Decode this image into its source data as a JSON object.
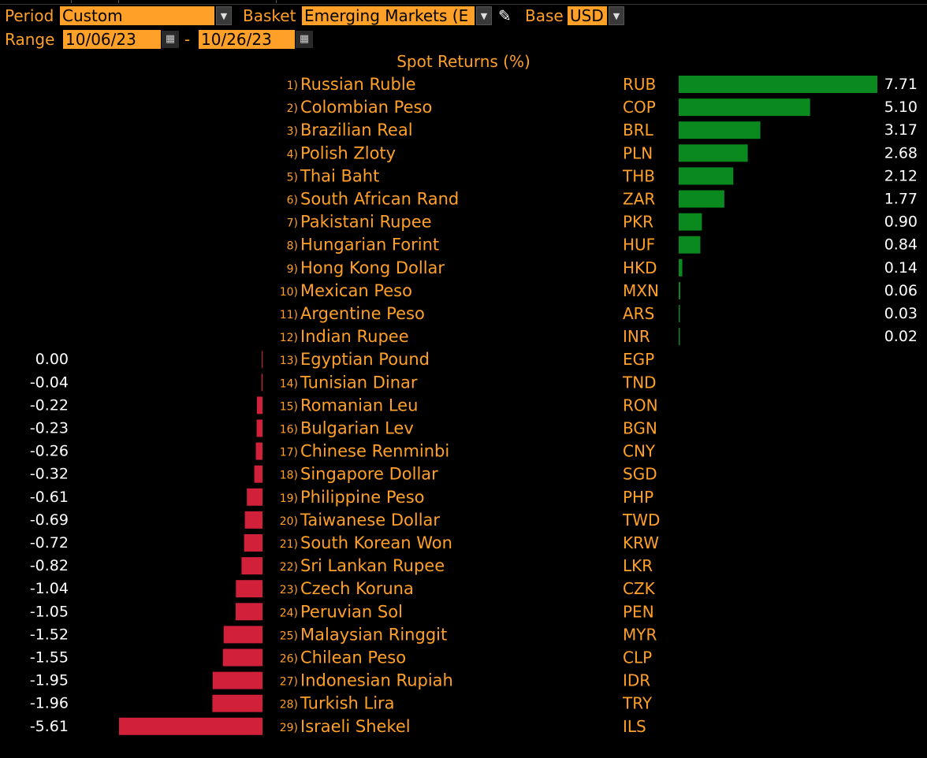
{
  "header": {
    "period_label": "Period",
    "period_value": "Custom",
    "basket_label": "Basket",
    "basket_value": "Emerging Markets (E",
    "base_label": "Base",
    "base_value": "USD",
    "range_label": "Range",
    "range_start": "10/06/23",
    "range_dash": "-",
    "range_end": "10/26/23"
  },
  "icons": {
    "dropdown": "chevron-down-icon",
    "calendar": "calendar-icon",
    "edit": "pencil-icon"
  },
  "colors": {
    "accent": "#ffa028",
    "positive": "#0a8a1e",
    "negative": "#d0203a",
    "background": "#000000"
  },
  "chart_data": {
    "type": "bar",
    "orientation": "horizontal-diverging",
    "title": "Spot Returns (%)",
    "rows": [
      {
        "rank": "1)",
        "name": "Russian Ruble",
        "code": "RUB",
        "value": 7.71
      },
      {
        "rank": "2)",
        "name": "Colombian Peso",
        "code": "COP",
        "value": 5.1
      },
      {
        "rank": "3)",
        "name": "Brazilian Real",
        "code": "BRL",
        "value": 3.17
      },
      {
        "rank": "4)",
        "name": "Polish Zloty",
        "code": "PLN",
        "value": 2.68
      },
      {
        "rank": "5)",
        "name": "Thai Baht",
        "code": "THB",
        "value": 2.12
      },
      {
        "rank": "6)",
        "name": "South African Rand",
        "code": "ZAR",
        "value": 1.77
      },
      {
        "rank": "7)",
        "name": "Pakistani Rupee",
        "code": "PKR",
        "value": 0.9
      },
      {
        "rank": "8)",
        "name": "Hungarian Forint",
        "code": "HUF",
        "value": 0.84
      },
      {
        "rank": "9)",
        "name": "Hong Kong Dollar",
        "code": "HKD",
        "value": 0.14
      },
      {
        "rank": "10)",
        "name": "Mexican Peso",
        "code": "MXN",
        "value": 0.06
      },
      {
        "rank": "11)",
        "name": "Argentine Peso",
        "code": "ARS",
        "value": 0.03
      },
      {
        "rank": "12)",
        "name": "Indian Rupee",
        "code": "INR",
        "value": 0.02
      },
      {
        "rank": "13)",
        "name": "Egyptian Pound",
        "code": "EGP",
        "value": 0.0
      },
      {
        "rank": "14)",
        "name": "Tunisian Dinar",
        "code": "TND",
        "value": -0.04
      },
      {
        "rank": "15)",
        "name": "Romanian Leu",
        "code": "RON",
        "value": -0.22
      },
      {
        "rank": "16)",
        "name": "Bulgarian Lev",
        "code": "BGN",
        "value": -0.23
      },
      {
        "rank": "17)",
        "name": "Chinese Renminbi",
        "code": "CNY",
        "value": -0.26
      },
      {
        "rank": "18)",
        "name": "Singapore Dollar",
        "code": "SGD",
        "value": -0.32
      },
      {
        "rank": "19)",
        "name": "Philippine Peso",
        "code": "PHP",
        "value": -0.61
      },
      {
        "rank": "20)",
        "name": "Taiwanese Dollar",
        "code": "TWD",
        "value": -0.69
      },
      {
        "rank": "21)",
        "name": "South Korean Won",
        "code": "KRW",
        "value": -0.72
      },
      {
        "rank": "22)",
        "name": "Sri Lankan Rupee",
        "code": "LKR",
        "value": -0.82
      },
      {
        "rank": "23)",
        "name": "Czech Koruna",
        "code": "CZK",
        "value": -1.04
      },
      {
        "rank": "24)",
        "name": "Peruvian Sol",
        "code": "PEN",
        "value": -1.05
      },
      {
        "rank": "25)",
        "name": "Malaysian Ringgit",
        "code": "MYR",
        "value": -1.52
      },
      {
        "rank": "26)",
        "name": "Chilean Peso",
        "code": "CLP",
        "value": -1.55
      },
      {
        "rank": "27)",
        "name": "Indonesian Rupiah",
        "code": "IDR",
        "value": -1.95
      },
      {
        "rank": "28)",
        "name": "Turkish Lira",
        "code": "TRY",
        "value": -1.96
      },
      {
        "rank": "29)",
        "name": "Israeli Shekel",
        "code": "ILS",
        "value": -5.61
      }
    ]
  }
}
